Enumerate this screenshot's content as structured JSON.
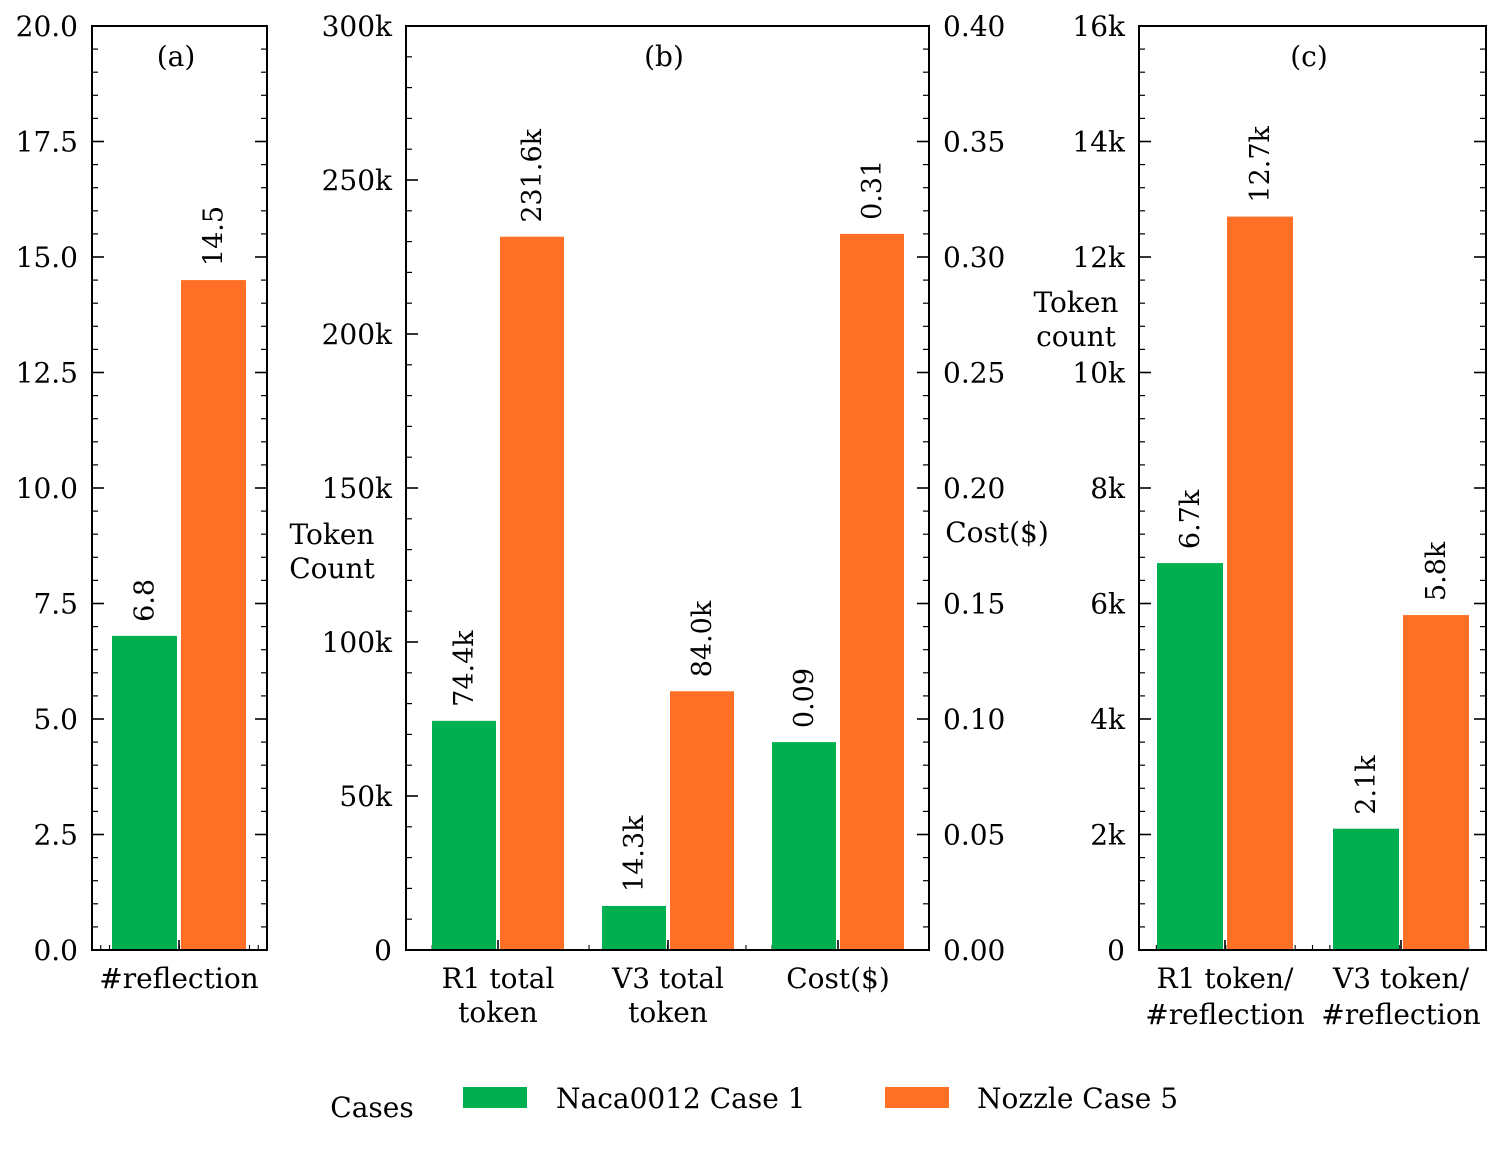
{
  "chart_data": [
    {
      "type": "bar",
      "panel": "(a)",
      "categories": [
        "#reflection"
      ],
      "series": [
        {
          "name": "Naca0012 Case 1",
          "values": [
            6.8
          ],
          "labels": [
            "6.8"
          ]
        },
        {
          "name": "Nozzle Case 5",
          "values": [
            14.5
          ],
          "labels": [
            "14.5"
          ]
        }
      ],
      "ylim": [
        0,
        20
      ],
      "yticks": [
        "0.0",
        "2.5",
        "5.0",
        "7.5",
        "10.0",
        "12.5",
        "15.0",
        "17.5",
        "20.0"
      ],
      "ylabel": ""
    },
    {
      "type": "bar",
      "panel": "(b)",
      "categories": [
        [
          "R1 total",
          "token"
        ],
        [
          "V3 total",
          "token"
        ],
        [
          "Cost($)"
        ]
      ],
      "series": [
        {
          "name": "Naca0012 Case 1",
          "values": [
            74.4,
            14.3,
            0.09
          ],
          "labels": [
            "74.4k",
            "14.3k",
            "0.09"
          ]
        },
        {
          "name": "Nozzle Case 5",
          "values": [
            231.6,
            84.0,
            0.31
          ],
          "labels": [
            "231.6k",
            "84.0k",
            "0.31"
          ]
        }
      ],
      "axis_per_category": [
        "left",
        "left",
        "right"
      ],
      "ylim": [
        0,
        300
      ],
      "yticks": [
        "0",
        "50k",
        "100k",
        "150k",
        "200k",
        "250k",
        "300k"
      ],
      "ylabel": [
        "Token",
        "Count"
      ],
      "ylim_right": [
        0,
        0.4
      ],
      "yticks_right": [
        "0.00",
        "0.05",
        "0.10",
        "0.15",
        "0.20",
        "0.25",
        "0.30",
        "0.35",
        "0.40"
      ],
      "ylabel_right": "Cost($)"
    },
    {
      "type": "bar",
      "panel": "(c)",
      "categories": [
        [
          "R1 token/",
          "#reflection"
        ],
        [
          "V3 token/",
          "#reflection"
        ]
      ],
      "series": [
        {
          "name": "Naca0012 Case 1",
          "values": [
            6.7,
            2.1
          ],
          "labels": [
            "6.7k",
            "2.1k"
          ]
        },
        {
          "name": "Nozzle Case 5",
          "values": [
            12.7,
            5.8
          ],
          "labels": [
            "12.7k",
            "5.8k"
          ]
        }
      ],
      "ylim": [
        0,
        16
      ],
      "yticks": [
        "0",
        "2k",
        "4k",
        "6k",
        "8k",
        "10k",
        "12k",
        "14k",
        "16k"
      ],
      "ylabel": [
        "Token",
        "count"
      ]
    }
  ],
  "legend": {
    "title": "Cases",
    "entries": [
      {
        "label": "Naca0012 Case 1",
        "color": "#00b050"
      },
      {
        "label": "Nozzle Case 5",
        "color": "#ff7026"
      }
    ],
    "placement": "bottom-center"
  }
}
